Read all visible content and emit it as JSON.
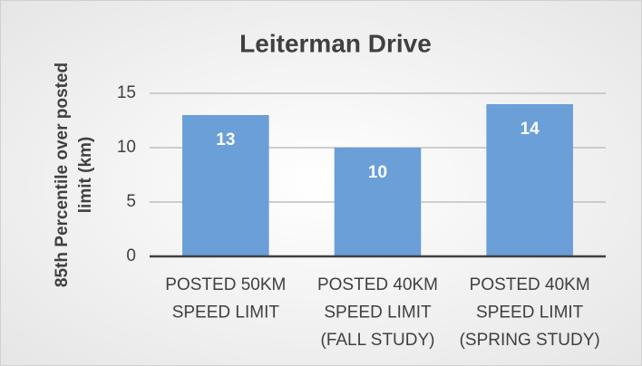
{
  "chart_data": {
    "type": "bar",
    "title": "Leiterman Drive",
    "y_axis_label": [
      "85th Percentile over posted",
      "limit (km)"
    ],
    "categories": [
      [
        "POSTED 50KM",
        "SPEED LIMIT"
      ],
      [
        "POSTED 40KM",
        "SPEED LIMIT",
        "(FALL STUDY)"
      ],
      [
        "POSTED 40KM",
        "SPEED LIMIT",
        "(SPRING STUDY)"
      ]
    ],
    "values": [
      13,
      10,
      14
    ],
    "color": "#6a9fd8",
    "ylim": [
      0,
      15
    ],
    "yticks": [
      0,
      5,
      10,
      15
    ],
    "grid": true
  }
}
